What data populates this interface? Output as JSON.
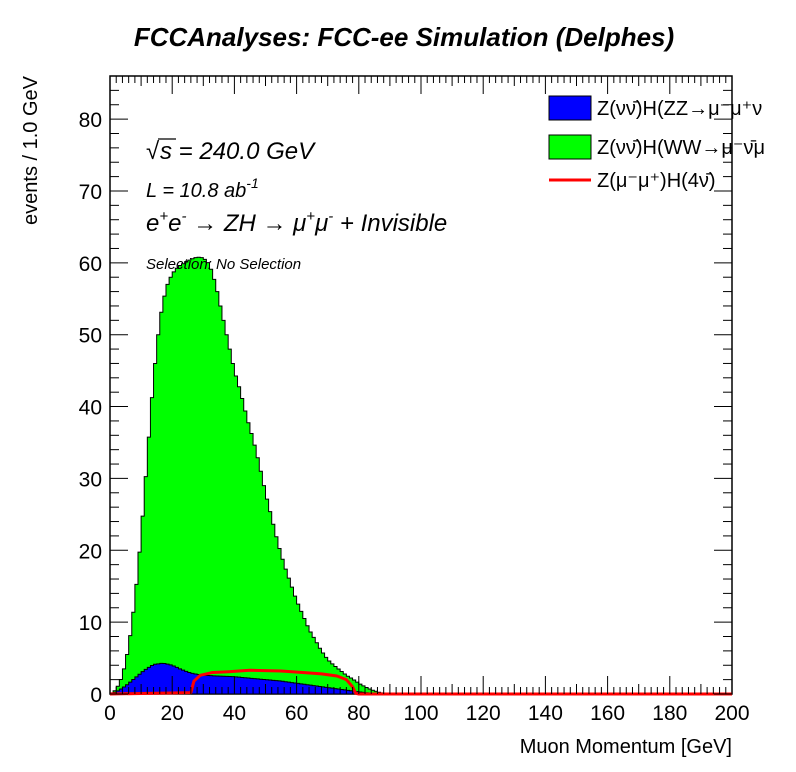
{
  "chart_data": {
    "type": "area",
    "style": "stacked-histogram",
    "title": "FCCAnalyses: FCC-ee Simulation (Delphes)",
    "xlabel": "Muon Momentum [GeV]",
    "ylabel": "events / 1.0 GeV",
    "xlim": [
      0,
      200
    ],
    "ylim": [
      0,
      86
    ],
    "x_ticks": [
      0,
      20,
      40,
      60,
      80,
      100,
      120,
      140,
      160,
      180,
      200
    ],
    "y_ticks": [
      0,
      10,
      20,
      30,
      40,
      50,
      60,
      70,
      80
    ],
    "bin_width": 1.0,
    "annotations": {
      "sqrt_s": "s = 240.0 GeV",
      "sqrt_symbol": "√",
      "lumi_main": "L = 10.8 ab",
      "lumi_sup": "-1",
      "process_1": "e",
      "process_sup_plus": "+",
      "process_2": "e",
      "process_sup_minus": "-",
      "process_arrow1": " → ZH → μ",
      "process_3": "μ",
      "process_tail": " + Invisible",
      "selection": "Selection: No Selection"
    },
    "legend_position": "top-right",
    "series": [
      {
        "name": "Z(νν̄)H(ZZ→μ⁻μ⁺ν",
        "draw": "stacked-fill",
        "color": "#0000ff",
        "points": [
          [
            0,
            0
          ],
          [
            2,
            0.3
          ],
          [
            5,
            1.1
          ],
          [
            8,
            2.2
          ],
          [
            11,
            3.3
          ],
          [
            14,
            4.1
          ],
          [
            17,
            4.3
          ],
          [
            20,
            4.0
          ],
          [
            23,
            3.4
          ],
          [
            26,
            2.9
          ],
          [
            30,
            2.6
          ],
          [
            35,
            2.5
          ],
          [
            40,
            2.4
          ],
          [
            45,
            2.2
          ],
          [
            50,
            2.0
          ],
          [
            55,
            1.8
          ],
          [
            60,
            1.5
          ],
          [
            65,
            1.2
          ],
          [
            70,
            0.9
          ],
          [
            75,
            0.6
          ],
          [
            80,
            0.3
          ],
          [
            84,
            0.1
          ],
          [
            88,
            0
          ]
        ]
      },
      {
        "name": "Z(νν̄)H(WW→μ⁻ν̄μ",
        "draw": "stacked-fill",
        "color": "#00ff00",
        "points_stacked_total": [
          [
            0,
            0
          ],
          [
            2,
            0.6
          ],
          [
            4,
            2.5
          ],
          [
            6,
            6.5
          ],
          [
            8,
            13
          ],
          [
            10,
            22
          ],
          [
            12,
            33
          ],
          [
            14,
            44
          ],
          [
            16,
            52
          ],
          [
            18,
            56.5
          ],
          [
            20,
            58.5
          ],
          [
            22,
            59.5
          ],
          [
            24,
            60
          ],
          [
            26,
            60.5
          ],
          [
            28,
            60.8
          ],
          [
            30,
            60.7
          ],
          [
            32,
            59.8
          ],
          [
            34,
            57
          ],
          [
            36,
            53
          ],
          [
            38,
            49
          ],
          [
            40,
            45
          ],
          [
            42,
            42
          ],
          [
            44,
            38.5
          ],
          [
            46,
            35.5
          ],
          [
            48,
            32
          ],
          [
            50,
            28
          ],
          [
            52,
            24.5
          ],
          [
            54,
            21
          ],
          [
            56,
            18
          ],
          [
            58,
            15.5
          ],
          [
            60,
            13
          ],
          [
            62,
            11
          ],
          [
            64,
            9
          ],
          [
            66,
            7.5
          ],
          [
            68,
            6
          ],
          [
            70,
            4.8
          ],
          [
            72,
            4
          ],
          [
            74,
            3.3
          ],
          [
            76,
            2.6
          ],
          [
            78,
            2.1
          ],
          [
            80,
            1.5
          ],
          [
            82,
            1
          ],
          [
            84,
            0.6
          ],
          [
            86,
            0.3
          ],
          [
            88,
            0.1
          ],
          [
            90,
            0
          ]
        ]
      },
      {
        "name": "Z(μ⁻μ⁺)H(4ν̄)",
        "draw": "line",
        "color": "#ff0000",
        "points": [
          [
            0,
            0
          ],
          [
            26,
            0.2
          ],
          [
            27,
            1.8
          ],
          [
            29,
            2.6
          ],
          [
            33,
            3.0
          ],
          [
            38,
            3.1
          ],
          [
            45,
            3.3
          ],
          [
            55,
            3.2
          ],
          [
            62,
            3.0
          ],
          [
            68,
            2.8
          ],
          [
            73,
            2.5
          ],
          [
            76,
            2.0
          ],
          [
            78,
            1.0
          ],
          [
            79,
            0.1
          ],
          [
            80,
            0
          ],
          [
            200,
            0
          ]
        ]
      }
    ]
  }
}
